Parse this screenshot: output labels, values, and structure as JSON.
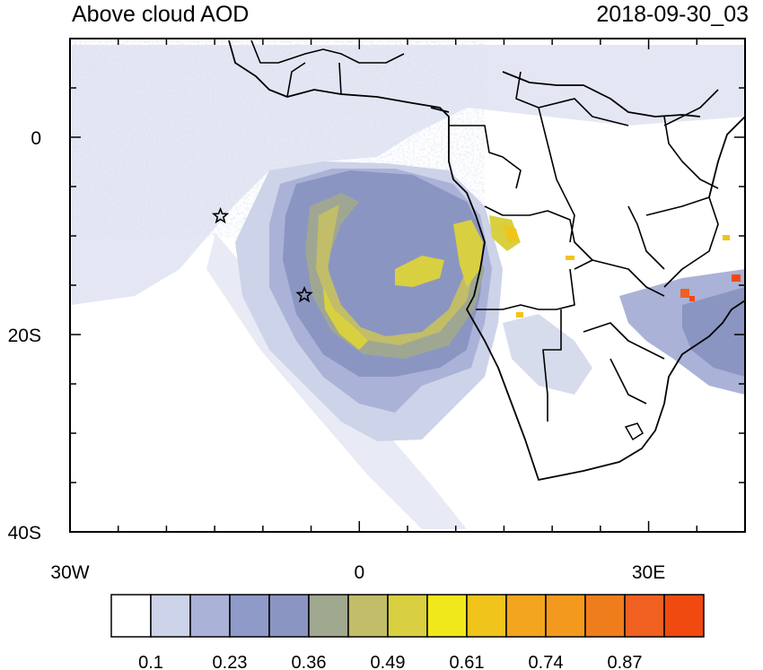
{
  "header": {
    "title": "Above cloud AOD",
    "timestamp": "2018-09-30_03"
  },
  "map": {
    "lon_range": [
      -30,
      40
    ],
    "lat_range": [
      -40,
      10
    ],
    "x_ticks": [
      {
        "value": -30,
        "label": "30W"
      },
      {
        "value": 0,
        "label": "0"
      },
      {
        "value": 30,
        "label": "30E"
      }
    ],
    "y_ticks": [
      {
        "value": 0,
        "label": "0"
      },
      {
        "value": -20,
        "label": "20S"
      },
      {
        "value": -40,
        "label": "40S"
      }
    ],
    "markers": [
      {
        "lon": -14.4,
        "lat": -8.0,
        "shape": "star"
      },
      {
        "lon": -5.7,
        "lat": -16.0,
        "shape": "star"
      }
    ]
  },
  "colorbar": {
    "colors": [
      "#ffffff",
      "#cdd3e8",
      "#aab2d8",
      "#8f9ac8",
      "#8b95c2",
      "#a0a890",
      "#c2bd68",
      "#d8d040",
      "#f0e81a",
      "#f0c41a",
      "#f3a51f",
      "#f39a1e",
      "#f07d1c",
      "#f06020",
      "#f04a10"
    ],
    "labels": [
      "0.1",
      "0.23",
      "0.36",
      "0.49",
      "0.61",
      "0.74",
      "0.87"
    ]
  }
}
